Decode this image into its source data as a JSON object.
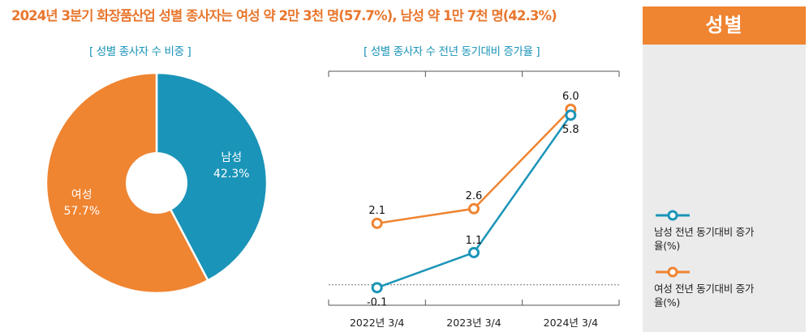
{
  "headline": "2024년 3분기 화장품산업 성별 종사자는 여성 약 2만 3천 명(57.7%), 남성 약 1만 7천 명(42.3%)",
  "sidebar": {
    "title": "성별"
  },
  "colors": {
    "male": "#1a94b8",
    "female": "#ef8431",
    "accent_text": "#e8772e"
  },
  "legend": [
    {
      "label": "남성 전년 동기대비 증가율(%)",
      "color": "#1a94b8"
    },
    {
      "label": "여성 전년 동기대비 증가율(%)",
      "color": "#ef8431"
    }
  ],
  "chart_data": [
    {
      "type": "pie",
      "title": "[ 성별 종사자 수 비중 ]",
      "slices": [
        {
          "name": "남성",
          "value": 42.3,
          "value_label": "42.3%",
          "color": "#1a94b8"
        },
        {
          "name": "여성",
          "value": 57.7,
          "value_label": "57.7%",
          "color": "#ef8431"
        }
      ],
      "donut": true
    },
    {
      "type": "line",
      "title": "[ 성별 종사자 수 전년 동기대비 증가율 ]",
      "categories": [
        "2022년 3/4",
        "2023년 3/4",
        "2024년 3/4"
      ],
      "series": [
        {
          "name": "남성 전년 동기대비 증가율(%)",
          "values": [
            -0.1,
            1.1,
            5.8
          ],
          "labels": [
            "-0.1",
            "1.1",
            "5.8"
          ],
          "color": "#1a94b8"
        },
        {
          "name": "여성 전년 동기대비 증가율(%)",
          "values": [
            2.1,
            2.6,
            6.0
          ],
          "labels": [
            "2.1",
            "2.6",
            "6.0"
          ],
          "color": "#ef8431"
        }
      ],
      "ylim": [
        -0.7,
        7.3
      ],
      "zero_line": true
    }
  ]
}
